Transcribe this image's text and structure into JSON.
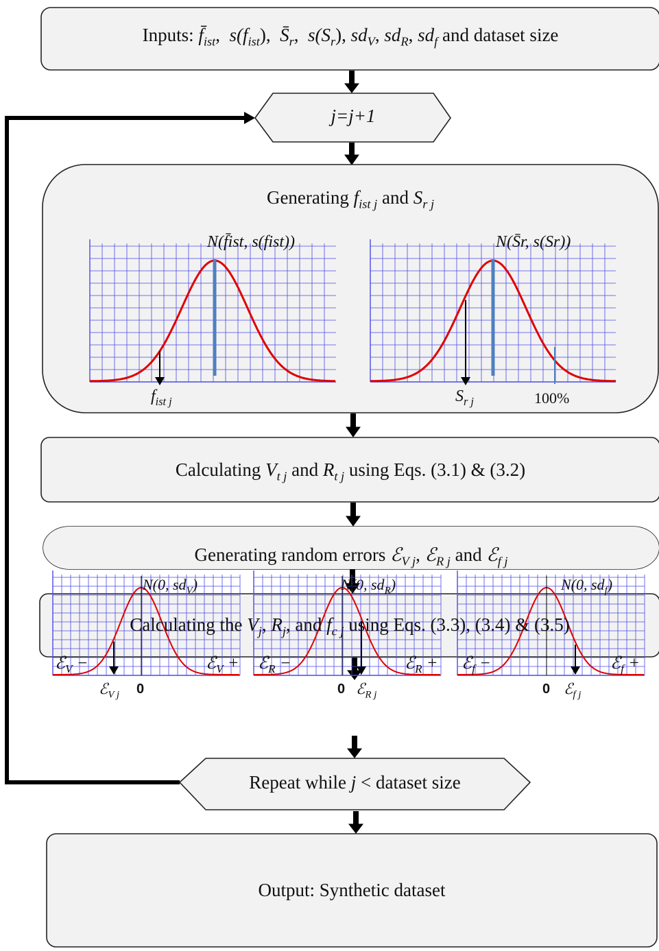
{
  "inputs_box": {
    "prefix": "Inputs: ",
    "f_bar": "f̄",
    "f_sub": "ist",
    "s_f": "s(f",
    "s_f_sub": "ist",
    "s_f_close": "),",
    "S_bar": "S̄",
    "S_sub": "r",
    "s_S": "s(S",
    "s_S_sub": "r",
    "s_S_close": "),",
    "sd": "sd",
    "sd_v": "V",
    "sd_r": "R",
    "sd_f": "f",
    "suffix": "and dataset size"
  },
  "increment_box": {
    "text": "j=j+1"
  },
  "generating_box": {
    "title_prefix": "Generating ",
    "f_sym": "f",
    "f_sub": "ist j",
    "and": " and ",
    "S_sym": "S",
    "S_sub": "r j",
    "plot_left_label": "N(f̄ist, s(fist))",
    "plot_left_arrow_label": "f",
    "plot_left_arrow_sub": "ist j",
    "plot_right_label": "N(S̄r, s(Sr))",
    "plot_right_arrow_label": "S",
    "plot_right_arrow_sub": "r j",
    "plot_right_limit": "100%"
  },
  "calc_vt_box": {
    "prefix": "Calculating ",
    "V": "V",
    "V_sub": "t j",
    "and": " and ",
    "R": "R",
    "R_sub": "t j",
    "suffix": " using Eqs. (3.1) & (3.2)"
  },
  "errors_box": {
    "title_prefix": "Generating random errors ",
    "eps": "ℰ",
    "sub_v": "V j",
    "sub_r": "R j",
    "sub_f": "f j",
    "and": " and ",
    "plots": [
      {
        "dist": "N(0, sd",
        "dist_sub": "V",
        "minus": "ℰ",
        "minus_sub": "V",
        "plus_sub": "V",
        "arrow_sub": "V j",
        "zero": "0"
      },
      {
        "dist": "N(0, sd",
        "dist_sub": "R",
        "minus": "ℰ",
        "minus_sub": "R",
        "plus_sub": "R",
        "arrow_sub": "R j",
        "zero": "0"
      },
      {
        "dist": "N(0, sd",
        "dist_sub": "f",
        "minus": "ℰ",
        "minus_sub": "f",
        "plus_sub": "f",
        "arrow_sub": "f j",
        "zero": "0"
      }
    ]
  },
  "calc_vj_box": {
    "prefix": "Calculating the ",
    "V": "V",
    "V_sub": "j",
    "R": "R",
    "R_sub": "j",
    "and": ",  and ",
    "f": "f",
    "f_sub": "c j",
    "suffix": " using Eqs. (3.3), (3.4)  & (3.5)"
  },
  "repeat_box": {
    "prefix": "Repeat while ",
    "j": "j",
    "suffix": " < dataset size"
  },
  "output_box": {
    "text": "Output: Synthetic dataset"
  },
  "colors": {
    "curve": "#e00000",
    "grid": "#4a4ae8",
    "marker": "#4f7fbf",
    "box_fill": "#f2f2f2"
  }
}
